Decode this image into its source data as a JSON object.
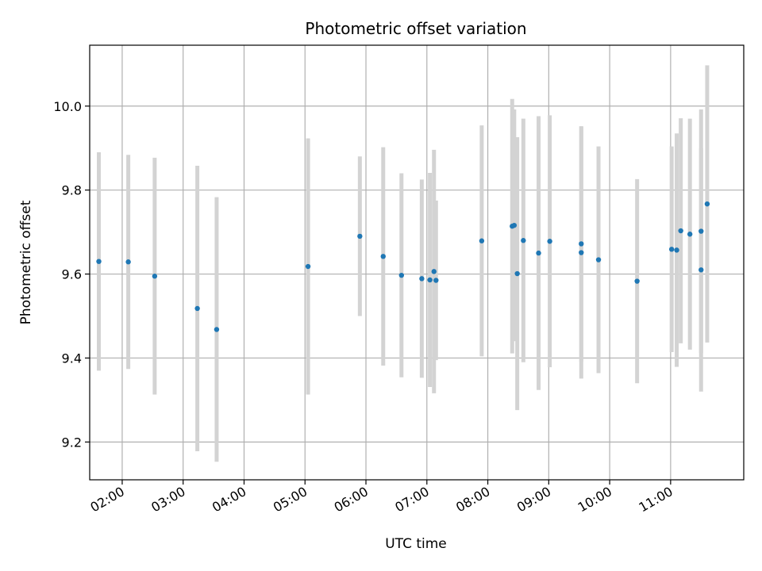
{
  "chart_data": {
    "type": "scatter",
    "title": "Photometric offset variation",
    "xlabel": "UTC time",
    "ylabel": "Photometric offset",
    "xlim": [
      "01:28",
      "12:12"
    ],
    "ylim": [
      9.11,
      10.145
    ],
    "x_ticks": [
      "02:00",
      "03:00",
      "04:00",
      "05:00",
      "06:00",
      "07:00",
      "08:00",
      "09:00",
      "10:00",
      "11:00"
    ],
    "y_ticks": [
      "9.2",
      "9.4",
      "9.6",
      "9.8",
      "10.0"
    ],
    "grid": true,
    "colors": {
      "point": "#1f77b4",
      "errorbar": "#d3d3d3",
      "grid": "#b0b0b0"
    },
    "points": [
      {
        "x": "01:37",
        "y": 9.63,
        "err": 0.26
      },
      {
        "x": "02:06",
        "y": 9.629,
        "err": 0.255
      },
      {
        "x": "02:32",
        "y": 9.595,
        "err": 0.282
      },
      {
        "x": "03:14",
        "y": 9.518,
        "err": 0.34
      },
      {
        "x": "03:33",
        "y": 9.468,
        "err": 0.315
      },
      {
        "x": "05:03",
        "y": 9.618,
        "err": 0.305
      },
      {
        "x": "05:54",
        "y": 9.69,
        "err": 0.19
      },
      {
        "x": "06:17",
        "y": 9.642,
        "err": 0.26
      },
      {
        "x": "06:35",
        "y": 9.597,
        "err": 0.243
      },
      {
        "x": "06:55",
        "y": 9.589,
        "err": 0.236
      },
      {
        "x": "07:03",
        "y": 9.586,
        "err": 0.255
      },
      {
        "x": "07:07",
        "y": 9.606,
        "err": 0.29
      },
      {
        "x": "07:09",
        "y": 9.585,
        "err": 0.19
      },
      {
        "x": "07:54",
        "y": 9.679,
        "err": 0.275
      },
      {
        "x": "08:24",
        "y": 9.714,
        "err": 0.303
      },
      {
        "x": "08:26",
        "y": 9.716,
        "err": 0.276
      },
      {
        "x": "08:29",
        "y": 9.601,
        "err": 0.325
      },
      {
        "x": "08:35",
        "y": 9.68,
        "err": 0.29
      },
      {
        "x": "08:50",
        "y": 9.65,
        "err": 0.326
      },
      {
        "x": "09:01",
        "y": 9.678,
        "err": 0.3
      },
      {
        "x": "09:32",
        "y": 9.672,
        "err": 0.28
      },
      {
        "x": "09:32",
        "y": 9.651,
        "err": 0.3
      },
      {
        "x": "09:49",
        "y": 9.634,
        "err": 0.27
      },
      {
        "x": "10:27",
        "y": 9.583,
        "err": 0.243
      },
      {
        "x": "11:01",
        "y": 9.659,
        "err": 0.245
      },
      {
        "x": "11:06",
        "y": 9.657,
        "err": 0.278
      },
      {
        "x": "11:10",
        "y": 9.703,
        "err": 0.268
      },
      {
        "x": "11:19",
        "y": 9.695,
        "err": 0.275
      },
      {
        "x": "11:30",
        "y": 9.61,
        "err": 0.29
      },
      {
        "x": "11:30",
        "y": 9.702,
        "err": 0.29
      },
      {
        "x": "11:36",
        "y": 9.767,
        "err": 0.33
      }
    ]
  }
}
